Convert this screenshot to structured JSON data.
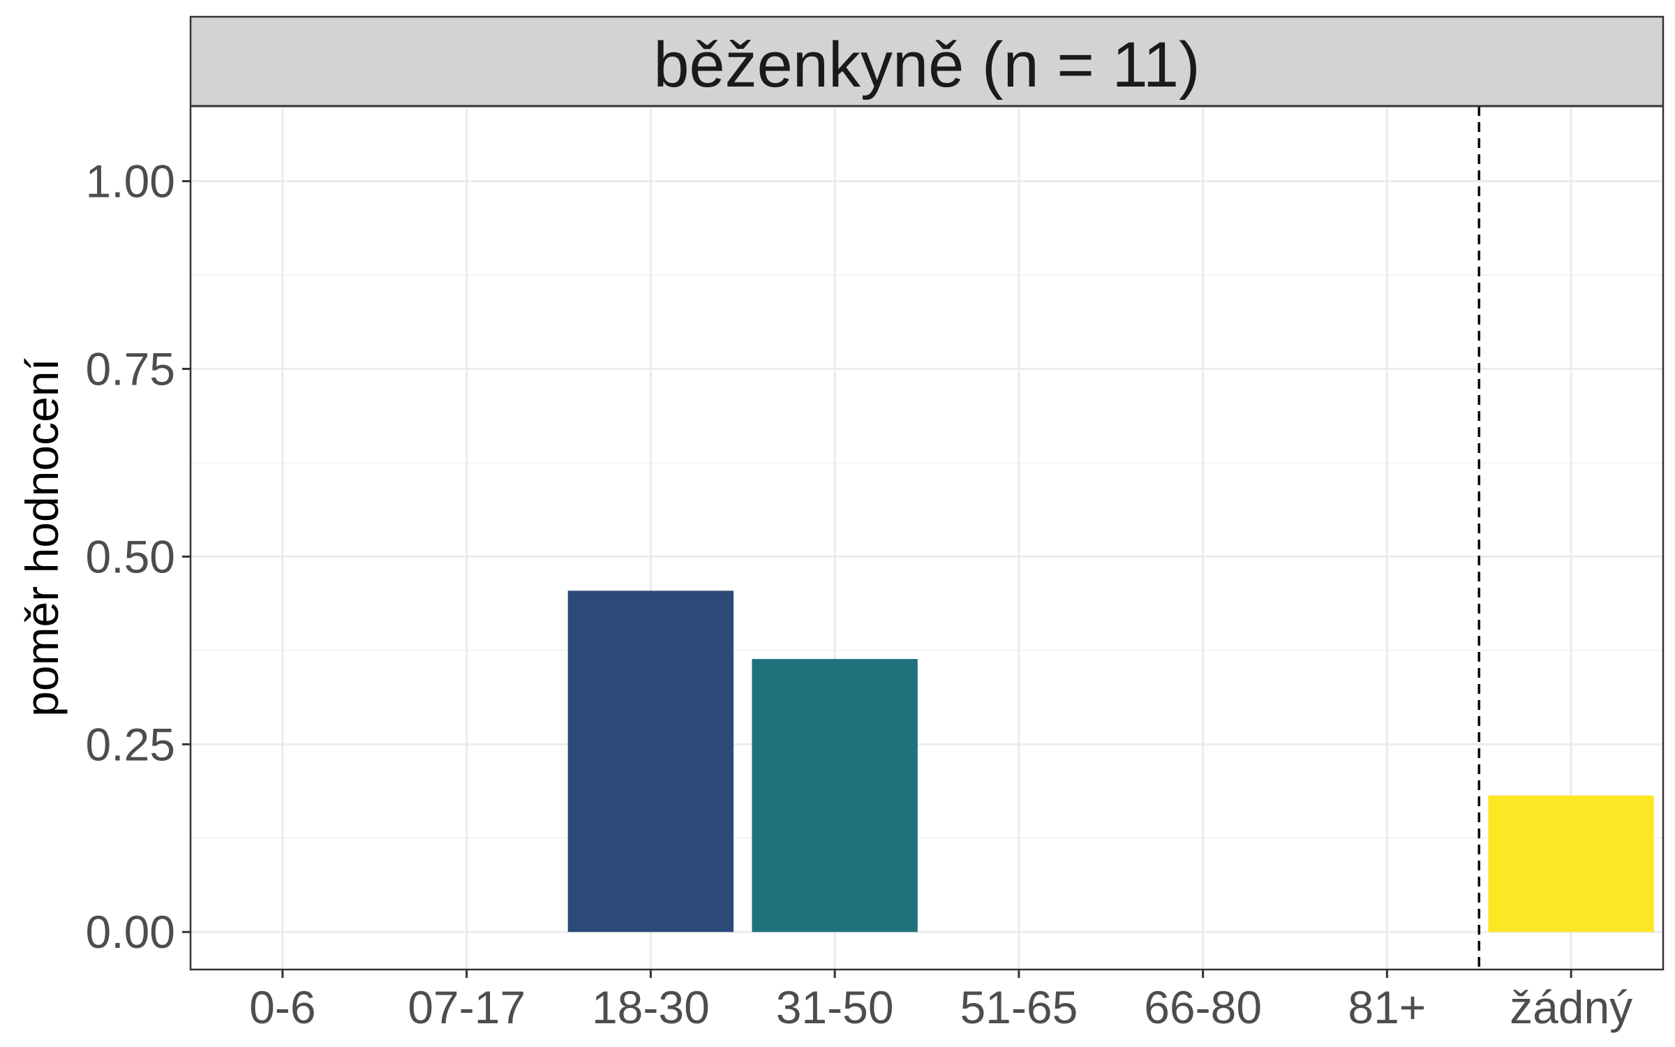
{
  "chart_data": {
    "type": "bar",
    "panel_title": "běženkyně (n = 11)",
    "ylabel": "poměr hodnocení",
    "xlabel": "",
    "categories": [
      "0-6",
      "07-17",
      "18-30",
      "31-50",
      "51-65",
      "66-80",
      "81+",
      "žádný"
    ],
    "values": [
      0,
      0,
      0.4545,
      0.3636,
      0,
      0,
      0,
      0.1818
    ],
    "bar_colors": [
      "#440154",
      "#46337E",
      "#2C4A78",
      "#21717C",
      "#2A9C7E",
      "#5DC863",
      "#AADC32",
      "#FDE725"
    ],
    "ylim": [
      -0.05,
      1.1
    ],
    "yticks": [
      0,
      0.25,
      0.5,
      0.75,
      1.0
    ],
    "ytick_labels": [
      "0.00",
      "0.25",
      "0.50",
      "0.75",
      "1.00"
    ],
    "reference_line": {
      "style": "dashed",
      "between_categories": [
        "81+",
        "žádný"
      ]
    },
    "grid": true,
    "colors": {
      "strip_fill": "#D3D3D3",
      "panel_border": "#333333",
      "grid_major": "#EBEBEB",
      "grid_minor": "#F2F2F2"
    }
  }
}
